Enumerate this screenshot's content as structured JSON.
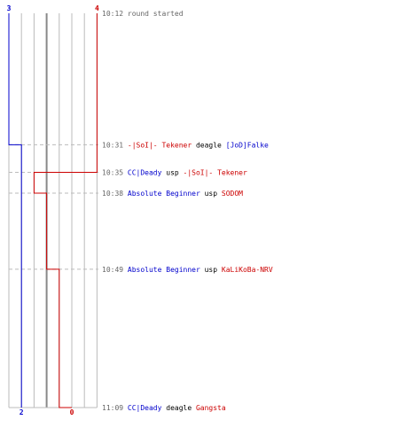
{
  "chart_data": {
    "type": "line",
    "title": "",
    "xlabel": "",
    "ylabel": "",
    "colors": {
      "team_blue": "#0000cc",
      "team_red": "#cc0000",
      "time": "#666666",
      "weapon": "#000000",
      "grid": "#bbbbbb",
      "divider": "#888888",
      "dashed": "#bbbbbb"
    },
    "grid_columns": 7,
    "blue_divider_column": 3,
    "series": [
      {
        "team": "blue",
        "start_count": "3",
        "end_count": "2",
        "steps": [
          1
        ]
      },
      {
        "team": "red",
        "start_count": "4",
        "end_count": "0",
        "steps": [
          2,
          3,
          4,
          5
        ]
      }
    ],
    "events": [
      {
        "time": "10:12",
        "text": "round started",
        "killer": "",
        "killer_team": "",
        "weapon": "",
        "victim": "",
        "victim_team": ""
      },
      {
        "time": "10:31",
        "text": "",
        "killer": "-|SoI|- Tekener",
        "killer_team": "red",
        "weapon": "deagle",
        "victim": "[JoD]Falke",
        "victim_team": "blue"
      },
      {
        "time": "10:35",
        "text": "",
        "killer": "CC|Deady",
        "killer_team": "blue",
        "weapon": "usp",
        "victim": "-|SoI|- Tekener",
        "victim_team": "red"
      },
      {
        "time": "10:38",
        "text": "",
        "killer": "Absolute Beginner",
        "killer_team": "blue",
        "weapon": "usp",
        "victim": "SODOM",
        "victim_team": "red"
      },
      {
        "time": "10:49",
        "text": "",
        "killer": "Absolute Beginner",
        "killer_team": "blue",
        "weapon": "usp",
        "victim": "KaLiKoBa-NRV",
        "victim_team": "red"
      },
      {
        "time": "11:09",
        "text": "",
        "killer": "CC|Deady",
        "killer_team": "blue",
        "weapon": "deagle",
        "victim": "Gangsta",
        "victim_team": "red"
      }
    ]
  }
}
